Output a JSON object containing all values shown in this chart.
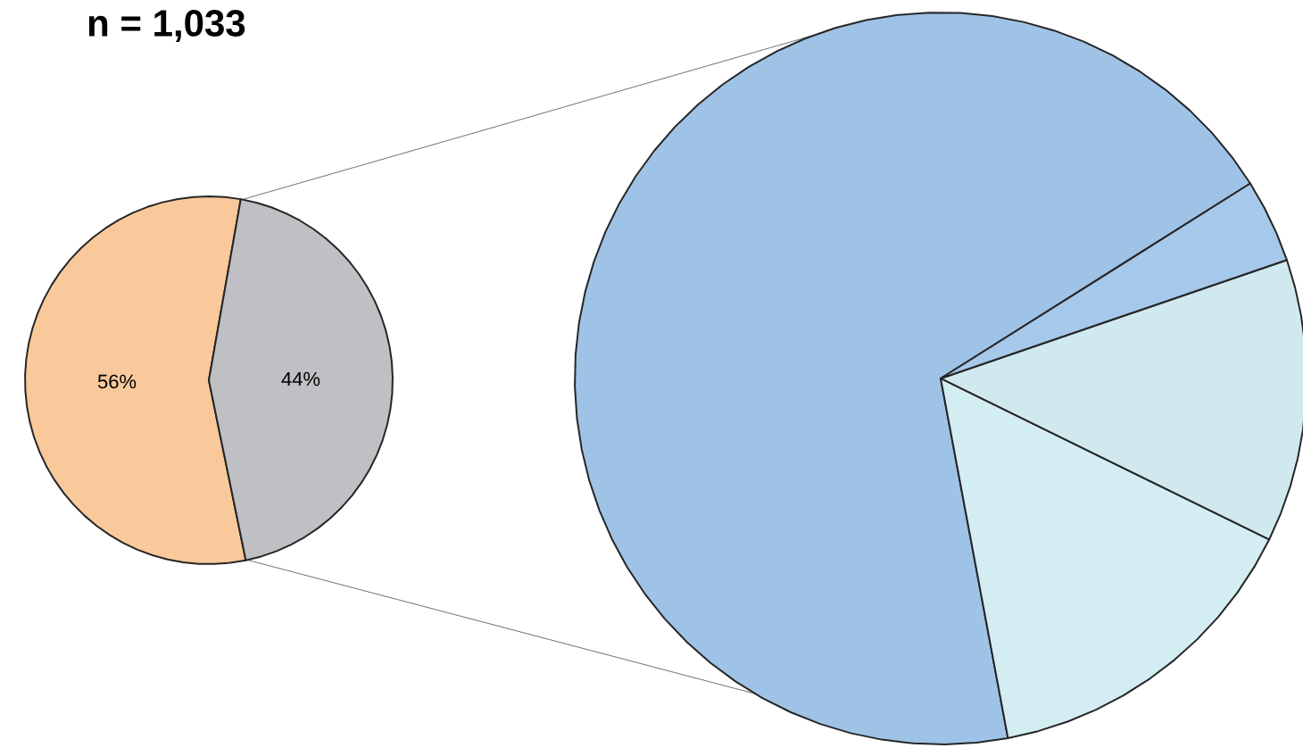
{
  "chart_data": [
    {
      "type": "pie",
      "title": "n = 1,033",
      "categories": [
        null,
        null
      ],
      "values": [
        56,
        44
      ],
      "colors": [
        "#f9c99b",
        "#bfc0c4"
      ],
      "value_labels": [
        "56%",
        "44%"
      ]
    },
    {
      "type": "pie",
      "categories": [
        null,
        null,
        null,
        null
      ],
      "values": [
        69.0,
        14.8,
        12.5,
        3.7
      ],
      "colors": [
        "#9fc3e7",
        "#d3edf2",
        "#cfe9ef",
        "#a6c8ea"
      ]
    }
  ]
}
